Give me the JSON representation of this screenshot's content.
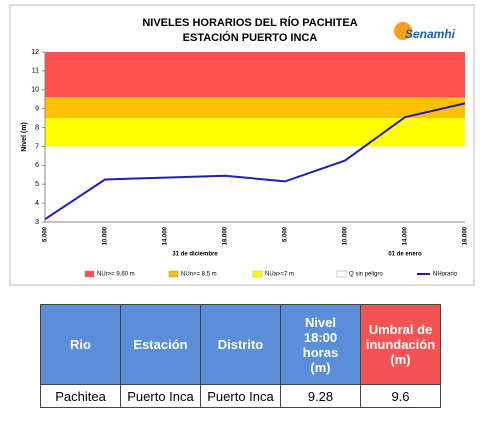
{
  "chart_data": {
    "type": "line",
    "title": "NIVELES HORARIOS DEL RÍO PACHITEA",
    "subtitle": "ESTACIÓN PUERTO INCA",
    "logo": "Senamhi",
    "y_label": "Nivel (m)",
    "categories": [
      "6.000",
      "10.000",
      "14.000",
      "18.000",
      "6.000",
      "10.000",
      "14.000",
      "18.000"
    ],
    "day_labels": [
      {
        "label": "31 de diciembre",
        "position": 2.5
      },
      {
        "label": "01 de enero",
        "position": 6
      }
    ],
    "bands": [
      {
        "name": "NUr>= 9.60 m",
        "color": "#ff5050",
        "from": 9.6,
        "to": 12
      },
      {
        "name": "NUn>= 8.5 m",
        "color": "#ffc000",
        "from": 8.5,
        "to": 9.6
      },
      {
        "name": "NUa>=7 m",
        "color": "#ffff00",
        "from": 7,
        "to": 8.5
      },
      {
        "name": "Q sin peligro",
        "color": "#ffffff",
        "from": 3,
        "to": 7
      }
    ],
    "series": [
      {
        "name": "NHorario",
        "color": "#1f1fb4",
        "values": [
          3.15,
          5.25,
          5.35,
          5.45,
          5.15,
          6.25,
          8.55,
          9.28
        ]
      }
    ],
    "ylim": [
      3,
      12
    ],
    "yticks": [
      3,
      4,
      5,
      6,
      7,
      8,
      9,
      10,
      11,
      12
    ]
  },
  "table": {
    "headers": [
      "Rio",
      "Estación",
      "Distrito",
      "Nivel 18:00 horas (m)",
      "Umbral de inundación (m)"
    ],
    "rows": [
      [
        "Pachitea",
        "Puerto Inca",
        "Puerto Inca",
        "9.28",
        "9.6"
      ]
    ]
  }
}
